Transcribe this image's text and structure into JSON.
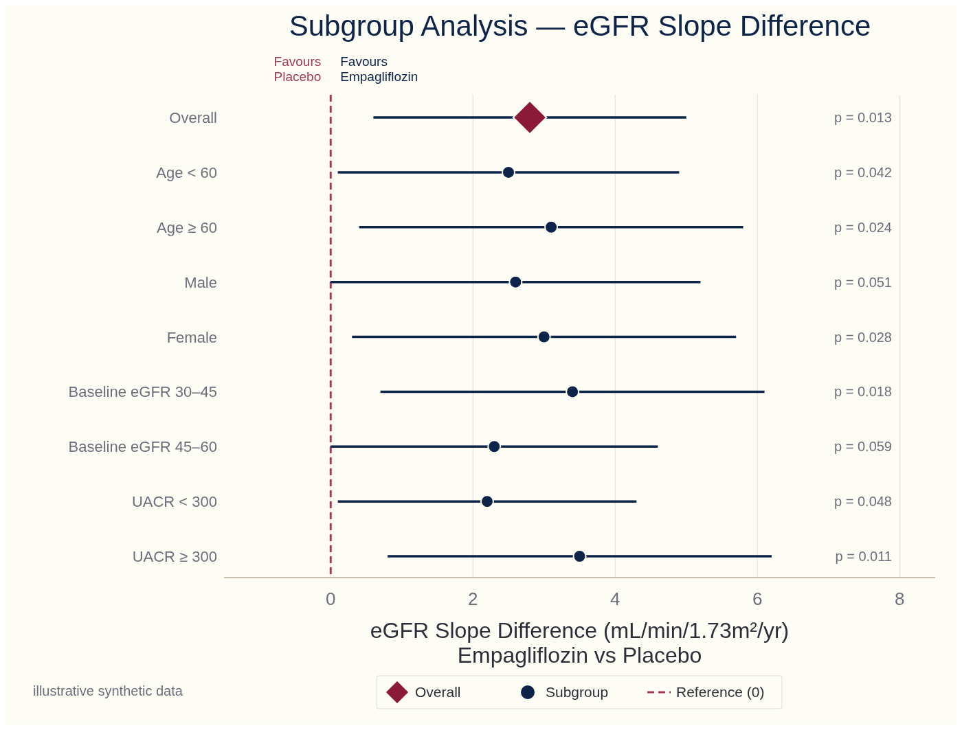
{
  "chart_data": {
    "type": "scatter",
    "orientation": "horizontal",
    "title": "Subgroup Analysis — eGFR Slope Difference",
    "xlabel": "eGFR Slope Difference (mL/min/1.73m²/yr)\nEmpagliflozin vs Placebo",
    "categories": [
      "Overall",
      "Age < 60",
      "Age ≥ 60",
      "Male",
      "Female",
      "Baseline eGFR 30–45",
      "Baseline eGFR 45–60",
      "UACR < 300",
      "UACR ≥ 300"
    ],
    "series": [
      {
        "name": "Overall",
        "color": "#8b1a3a",
        "marker": "diamond",
        "values": [
          2.8,
          null,
          null,
          null,
          null,
          null,
          null,
          null,
          null
        ],
        "errors": [
          [
            0.6,
            5.0
          ],
          null,
          null,
          null,
          null,
          null,
          null,
          null,
          null
        ]
      },
      {
        "name": "Subgroup",
        "color": "#0d2449",
        "marker": "circle",
        "values": [
          null,
          2.5,
          3.1,
          2.6,
          3.0,
          3.4,
          2.3,
          2.2,
          3.5
        ],
        "errors": [
          null,
          [
            0.1,
            4.9
          ],
          [
            0.4,
            5.8
          ],
          [
            0.0,
            5.2
          ],
          [
            0.3,
            5.7
          ],
          [
            0.7,
            6.1
          ],
          [
            0.0,
            4.6
          ],
          [
            0.1,
            4.3
          ],
          [
            0.8,
            6.2
          ]
        ]
      }
    ],
    "ref_lines": [
      {
        "axis": "x",
        "value": 0,
        "label": "Reference (0)",
        "color": "#a33a5a",
        "line_style": "dashed"
      }
    ],
    "xlim": [
      -1.5,
      8.5
    ],
    "xticks": [
      0,
      2,
      4,
      6,
      8
    ],
    "grid": "x",
    "legend": "bottom",
    "annotations": [
      "Favours\nPlacebo",
      "Favours\nEmpagliflozin",
      "illustrative synthetic data",
      "p = 0.013",
      "p = 0.042",
      "p = 0.024",
      "p = 0.051",
      "p = 0.028",
      "p = 0.018",
      "p = 0.059",
      "p = 0.048",
      "p = 0.011"
    ]
  }
}
